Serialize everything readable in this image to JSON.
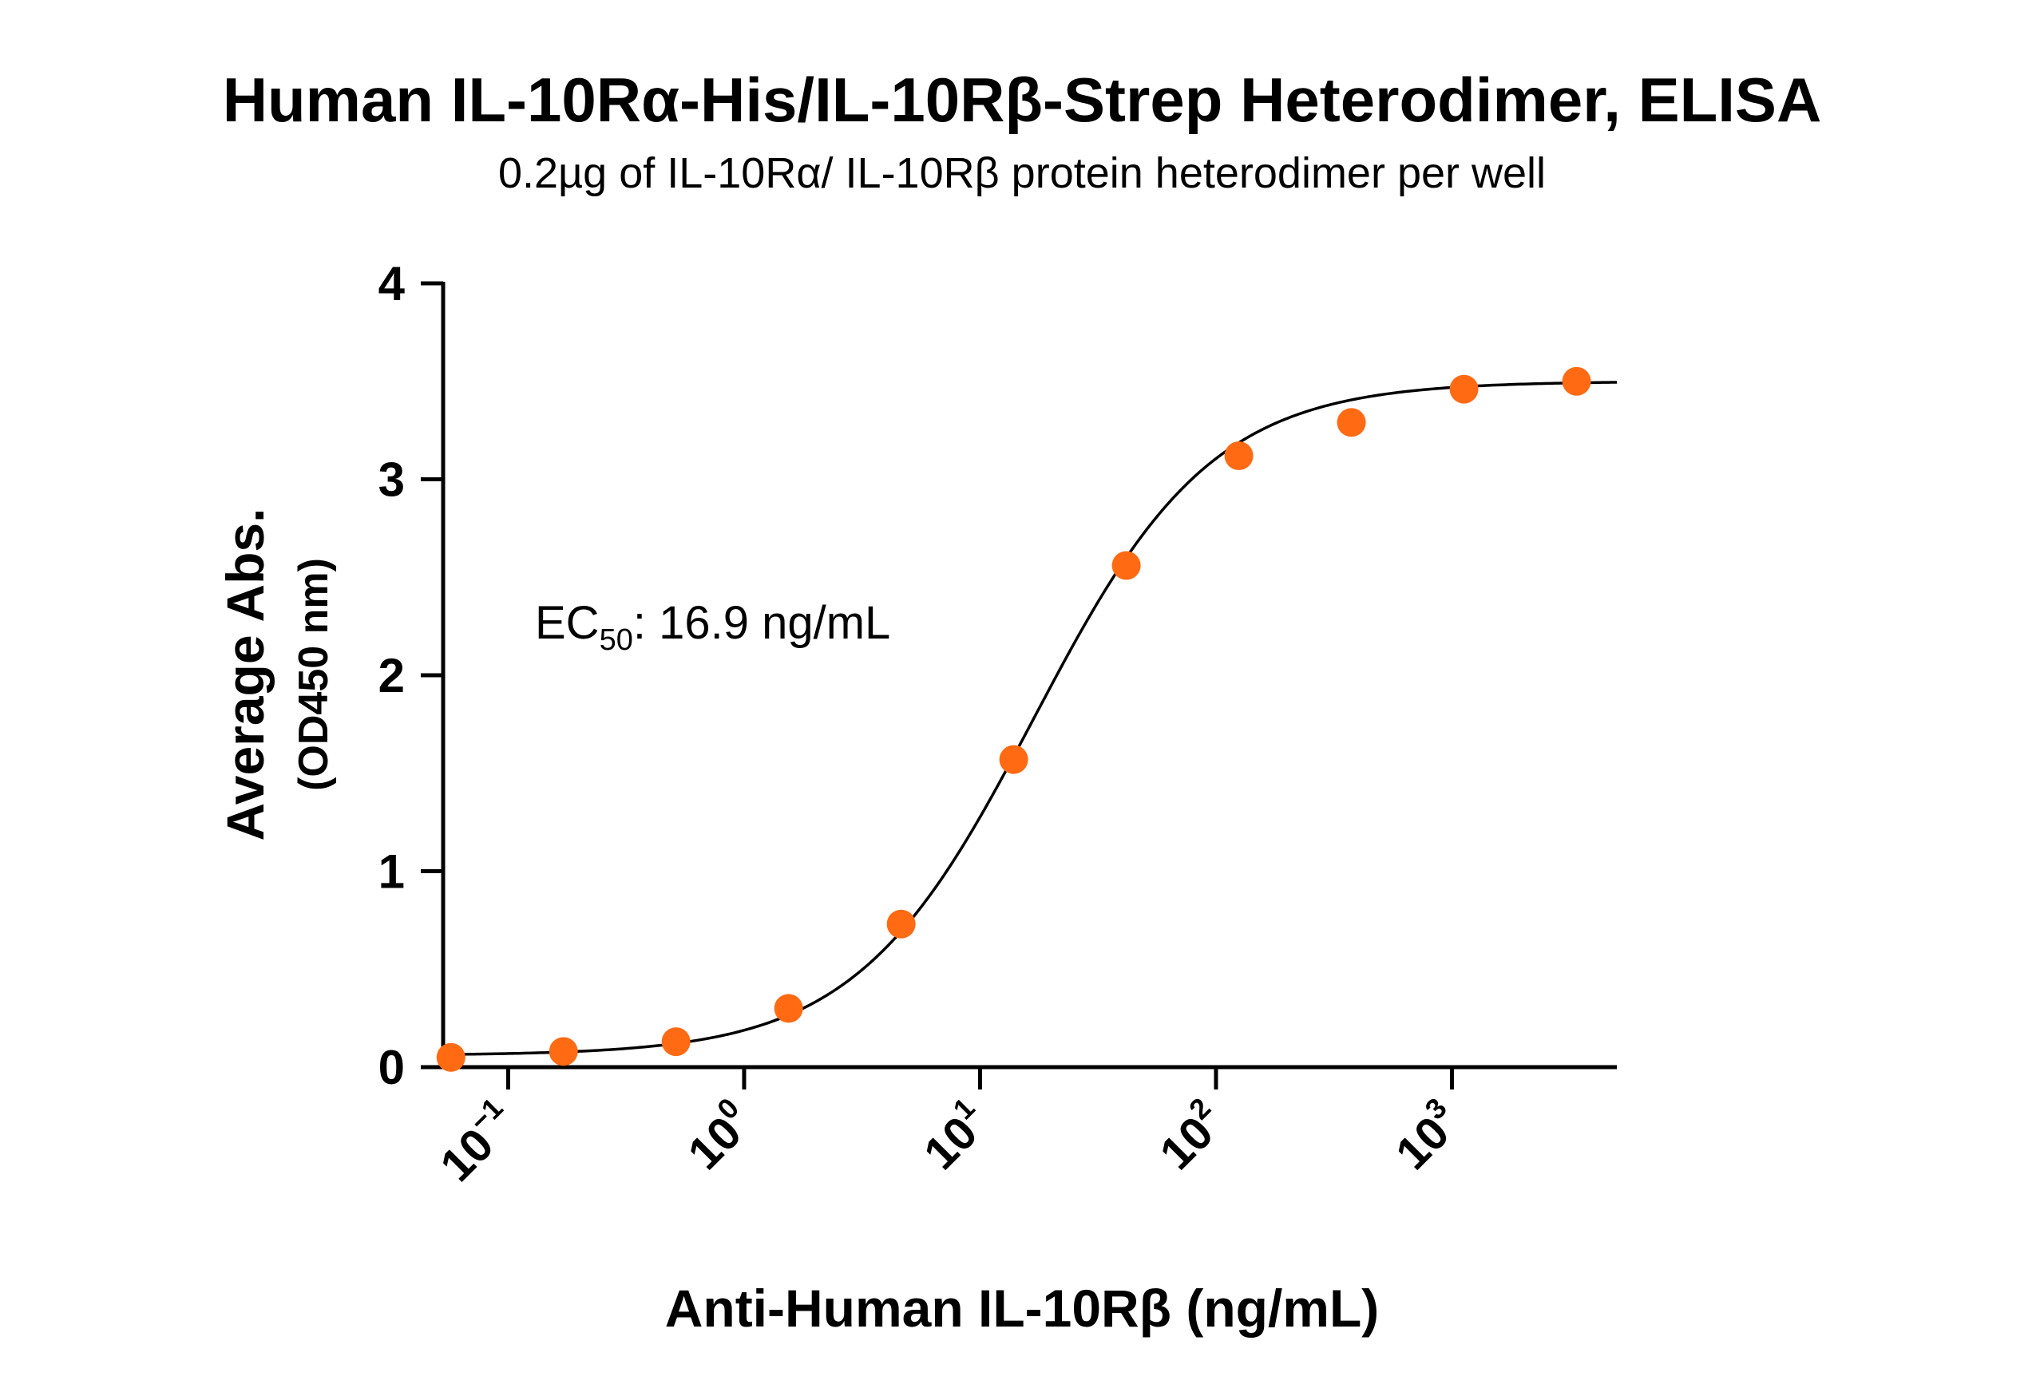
{
  "colors": {
    "point": "#FF6A13",
    "curve": "#000000",
    "axis": "#000000"
  },
  "chart_data": {
    "type": "scatter",
    "title": "Human IL-10Rα-His/IL-10Rβ-Strep Heterodimer, ELISA",
    "subtitle": "0.2µg of IL-10Rα/ IL-10Rβ protein heterodimer per well",
    "xlabel": "Anti-Human IL-10Rβ (ng/mL)",
    "ylabel": "Average Abs.",
    "ylabel_sub": "(OD450 nm)",
    "x_scale": "log10",
    "xlim": [
      0.053,
      5000
    ],
    "ylim": [
      0,
      4
    ],
    "y_ticks": [
      "0",
      "1",
      "2",
      "3",
      "4"
    ],
    "x_ticks": [
      {
        "base": "10",
        "exp": "−1",
        "value": 0.1
      },
      {
        "base": "10",
        "exp": "0",
        "value": 1
      },
      {
        "base": "10",
        "exp": "1",
        "value": 10
      },
      {
        "base": "10",
        "exp": "2",
        "value": 100
      },
      {
        "base": "10",
        "exp": "3",
        "value": 1000
      }
    ],
    "grid": false,
    "legend": "none",
    "annotation": {
      "prefix": "EC",
      "sub": "50",
      "suffix": ": 16.9 ng/mL"
    },
    "series": [
      {
        "x": [
          0.0572,
          0.1715,
          0.5144,
          1.543,
          4.63,
          13.89,
          41.67,
          125,
          375,
          1125,
          3375
        ],
        "y": [
          0.05,
          0.08,
          0.13,
          0.3,
          0.73,
          1.57,
          2.56,
          3.12,
          3.29,
          3.46,
          3.5
        ]
      }
    ],
    "fit": {
      "bottom": 0.06,
      "top": 3.5,
      "ec50": 16.9,
      "hill": 1.15,
      "x_range": [
        0.0572,
        5000
      ]
    }
  }
}
